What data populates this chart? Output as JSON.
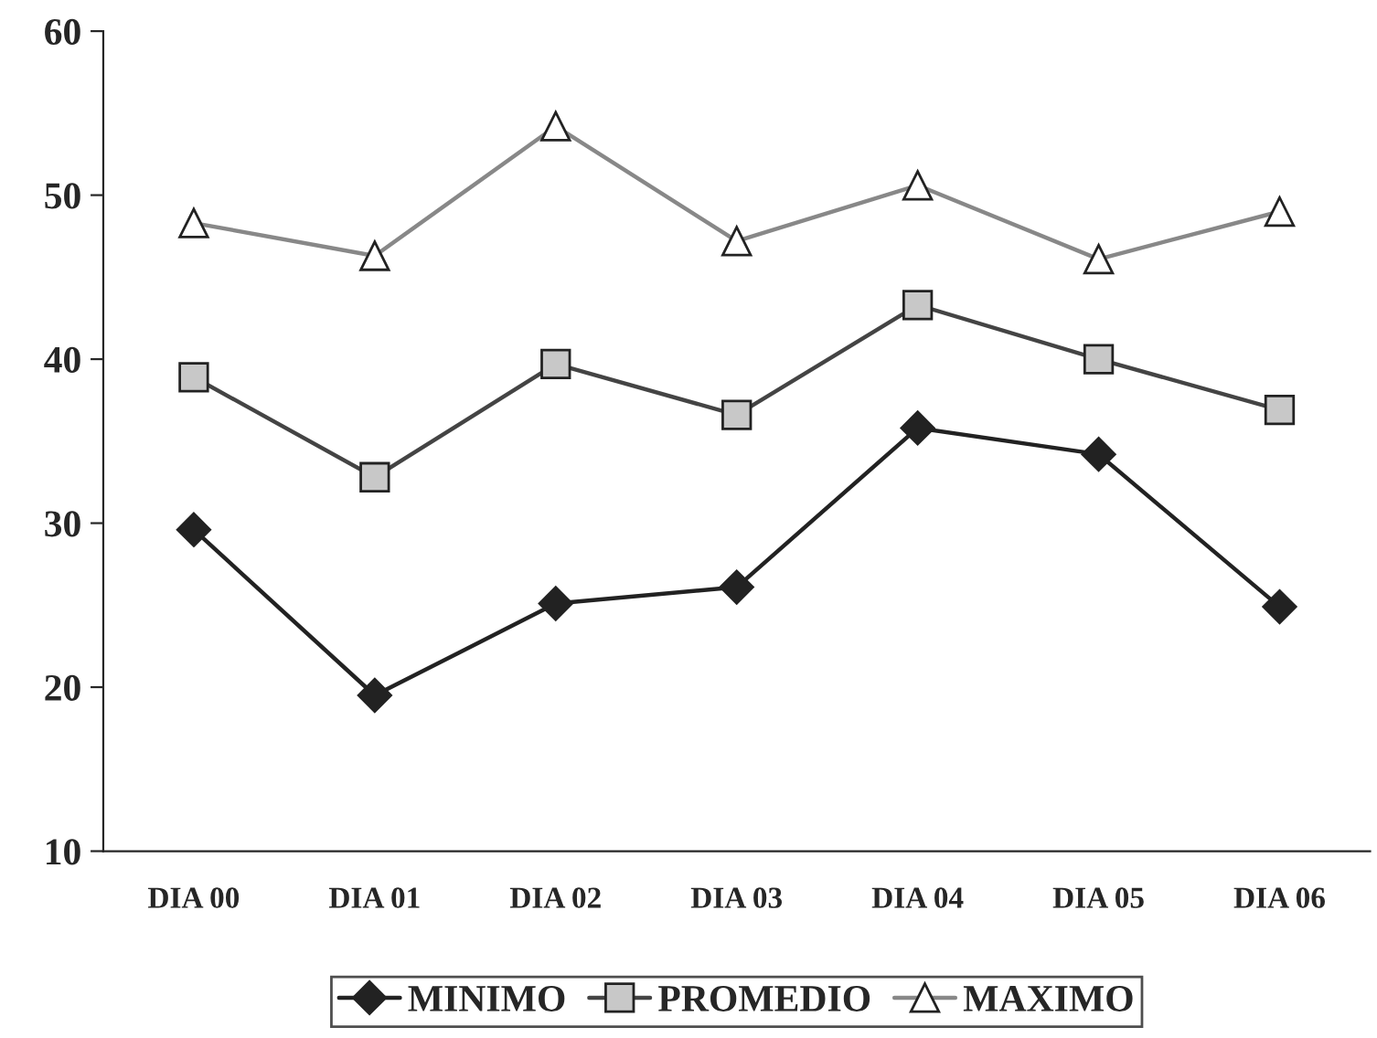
{
  "chart_data": {
    "type": "line",
    "categories": [
      "DIA 00",
      "DIA 01",
      "DIA 02",
      "DIA 03",
      "DIA 04",
      "DIA 05",
      "DIA 06"
    ],
    "series": [
      {
        "name": "MINIMO",
        "color": "#222222",
        "marker": "diamond",
        "values": [
          29.6,
          19.5,
          25.1,
          26.1,
          35.8,
          34.2,
          24.9
        ]
      },
      {
        "name": "PROMEDIO",
        "color": "#444444",
        "marker": "square",
        "values": [
          38.9,
          32.8,
          39.7,
          36.6,
          43.3,
          40.0,
          36.9
        ]
      },
      {
        "name": "MAXIMO",
        "color": "#888888",
        "marker": "triangle",
        "values": [
          48.3,
          46.3,
          54.2,
          47.2,
          50.6,
          46.1,
          49.0
        ]
      }
    ],
    "ylim": [
      10,
      60
    ],
    "yticks": [
      10,
      20,
      30,
      40,
      50,
      60
    ],
    "grid": false,
    "legend": "bottom",
    "line_style": "solid"
  }
}
